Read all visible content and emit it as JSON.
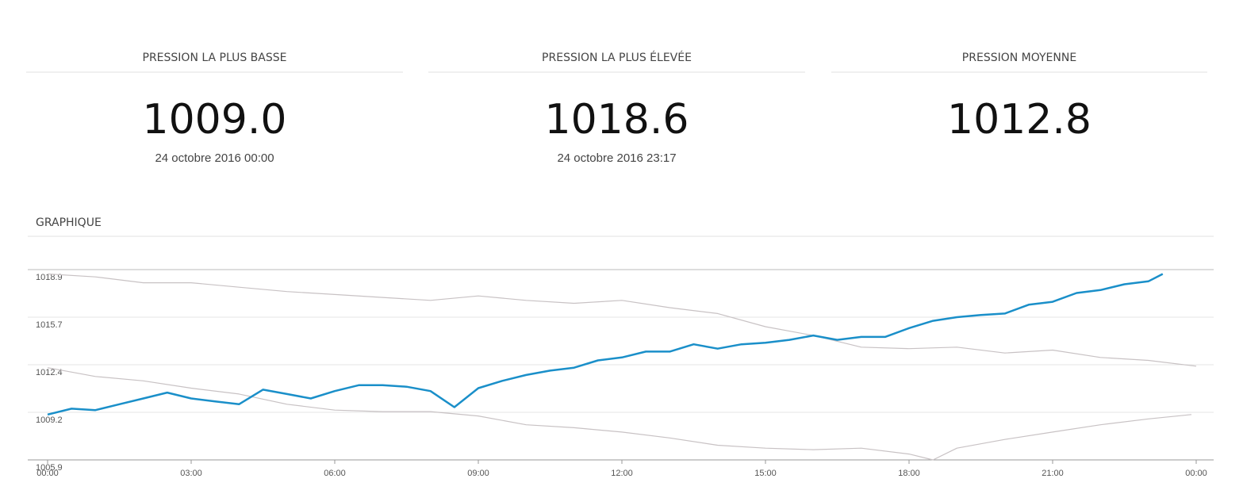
{
  "stats": [
    {
      "label": "PRESSION LA PLUS BASSE",
      "value": "1009.0",
      "date": "24 octobre 2016 00:00"
    },
    {
      "label": "PRESSION LA PLUS ÉLEVÉE",
      "value": "1018.6",
      "date": "24 octobre 2016 23:17"
    },
    {
      "label": "PRESSION MOYENNE",
      "value": "1012.8"
    }
  ],
  "chart_data": {
    "type": "line",
    "title": "GRAPHIQUE",
    "xlim": [
      0,
      24
    ],
    "xticks": [
      {
        "value": 0,
        "label": "00:00"
      },
      {
        "value": 3,
        "label": "03:00"
      },
      {
        "value": 6,
        "label": "06:00"
      },
      {
        "value": 9,
        "label": "09:00"
      },
      {
        "value": 12,
        "label": "12:00"
      },
      {
        "value": 15,
        "label": "15:00"
      },
      {
        "value": 18,
        "label": "18:00"
      },
      {
        "value": 21,
        "label": "21:00"
      },
      {
        "value": 24,
        "label": "00:00"
      }
    ],
    "ylim": [
      1005.9,
      1018.9
    ],
    "yticks": [
      1005.9,
      {
        "value": 1009.15,
        "label": "1009.2"
      },
      1012.4,
      {
        "value": 1015.65,
        "label": "1015.7"
      },
      1018.9
    ],
    "grid": true,
    "series": [
      {
        "color": "#c8c2c4",
        "x": [
          0,
          1,
          2,
          3,
          4,
          5,
          6,
          7,
          8,
          9,
          10,
          11,
          12,
          13,
          14,
          15,
          16,
          17,
          18,
          19,
          20,
          21,
          22,
          23,
          24
        ],
        "values": [
          1018.6,
          1018.4,
          1018.0,
          1018.0,
          1017.7,
          1017.4,
          1017.2,
          1017.0,
          1016.8,
          1017.1,
          1016.8,
          1016.6,
          1016.8,
          1016.3,
          1015.9,
          1015.0,
          1014.4,
          1013.6,
          1013.5,
          1013.6,
          1013.2,
          1013.4,
          1012.9,
          1012.7,
          1012.3
        ]
      },
      {
        "color": "#c8c2c4",
        "x": [
          0,
          1,
          2,
          3,
          4,
          5,
          6,
          7,
          8,
          9,
          10,
          11,
          12,
          13,
          14,
          15,
          16,
          17,
          18,
          18.5,
          19,
          20,
          21,
          22,
          23,
          23.9
        ],
        "values": [
          1012.2,
          1011.6,
          1011.3,
          1010.8,
          1010.4,
          1009.7,
          1009.3,
          1009.2,
          1009.2,
          1008.9,
          1008.3,
          1008.1,
          1007.8,
          1007.4,
          1006.9,
          1006.7,
          1006.6,
          1006.7,
          1006.3,
          1005.9,
          1006.7,
          1007.3,
          1007.8,
          1008.3,
          1008.7,
          1009.0
        ]
      },
      {
        "color": "#1a8fc9",
        "x": [
          0,
          0.5,
          1,
          1.5,
          2,
          2.5,
          3,
          3.5,
          4,
          4.5,
          5,
          5.5,
          6,
          6.5,
          7,
          7.5,
          8,
          8.5,
          9,
          9.5,
          10,
          10.5,
          11,
          11.5,
          12,
          12.5,
          13,
          13.5,
          14,
          14.5,
          15,
          15.5,
          16,
          16.5,
          17,
          17.5,
          18,
          18.5,
          19,
          19.5,
          20,
          20.5,
          21,
          21.5,
          22,
          22.5,
          23,
          23.3
        ],
        "values": [
          1009.0,
          1009.4,
          1009.3,
          1009.7,
          1010.1,
          1010.5,
          1010.1,
          1009.9,
          1009.7,
          1010.7,
          1010.4,
          1010.1,
          1010.6,
          1011.0,
          1011.0,
          1010.9,
          1010.6,
          1009.5,
          1010.8,
          1011.3,
          1011.7,
          1012.0,
          1012.2,
          1012.7,
          1012.9,
          1013.3,
          1013.3,
          1013.8,
          1013.5,
          1013.8,
          1013.9,
          1014.1,
          1014.4,
          1014.1,
          1014.3,
          1014.3,
          1014.9,
          1015.4,
          1015.65,
          1015.8,
          1015.9,
          1016.5,
          1016.7,
          1017.3,
          1017.5,
          1017.9,
          1018.1,
          1018.6
        ]
      }
    ]
  }
}
